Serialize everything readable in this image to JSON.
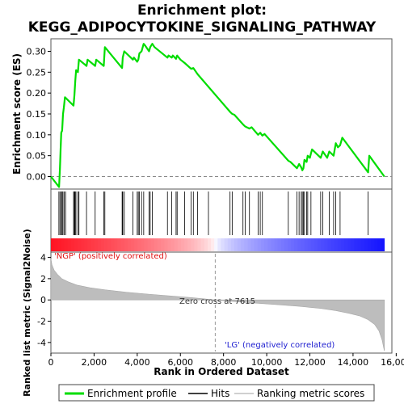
{
  "chart_data": {
    "type": "line",
    "title_line1": "Enrichment plot:",
    "title_line2": "KEGG_ADIPOCYTOKINE_SIGNALING_PATHWAY",
    "es_panel": {
      "ylabel": "Enrichment score (ES)",
      "ylim": [
        -0.03,
        0.33
      ],
      "yticks": [
        "0.00",
        "0.05",
        "0.10",
        "0.15",
        "0.20",
        "0.25",
        "0.30"
      ],
      "ytick_values": [
        0.0,
        0.05,
        0.1,
        0.15,
        0.2,
        0.25,
        0.3
      ],
      "series": [
        {
          "name": "Enrichment profile",
          "color": "#00dd00",
          "x": [
            0,
            380,
            420,
            450,
            480,
            520,
            560,
            600,
            650,
            1050,
            1090,
            1130,
            1170,
            1250,
            1300,
            1650,
            1700,
            2050,
            2100,
            2450,
            2500,
            3300,
            3330,
            3400,
            3800,
            3850,
            4000,
            4050,
            4100,
            4200,
            4300,
            4350,
            4550,
            4600,
            4700,
            4800,
            5400,
            5450,
            5600,
            5650,
            5800,
            5850,
            6000,
            6200,
            6500,
            6600,
            6800,
            8300,
            8400,
            8500,
            8900,
            9000,
            9200,
            9300,
            9600,
            9700,
            9800,
            9900,
            11000,
            11100,
            11400,
            11500,
            11600,
            11650,
            11700,
            11750,
            11850,
            11900,
            12000,
            12050,
            12100,
            12500,
            12600,
            12800,
            12900,
            13100,
            13200,
            13300,
            13400,
            13500,
            14700,
            14750,
            15450
          ],
          "y": [
            0.0,
            -0.025,
            0.02,
            0.065,
            0.105,
            0.11,
            0.15,
            0.165,
            0.19,
            0.17,
            0.195,
            0.23,
            0.255,
            0.25,
            0.28,
            0.265,
            0.28,
            0.265,
            0.28,
            0.265,
            0.31,
            0.26,
            0.285,
            0.3,
            0.28,
            0.285,
            0.275,
            0.28,
            0.295,
            0.3,
            0.318,
            0.315,
            0.3,
            0.31,
            0.318,
            0.31,
            0.285,
            0.29,
            0.285,
            0.29,
            0.282,
            0.29,
            0.28,
            0.272,
            0.258,
            0.26,
            0.245,
            0.155,
            0.15,
            0.148,
            0.125,
            0.12,
            0.115,
            0.118,
            0.1,
            0.105,
            0.098,
            0.102,
            0.038,
            0.035,
            0.02,
            0.03,
            0.022,
            0.015,
            0.02,
            0.04,
            0.035,
            0.05,
            0.045,
            0.055,
            0.065,
            0.045,
            0.06,
            0.045,
            0.06,
            0.05,
            0.08,
            0.07,
            0.075,
            0.093,
            0.01,
            0.05,
            0.0
          ]
        }
      ]
    },
    "hits_panel": {
      "hit_positions": [
        370,
        420,
        480,
        520,
        560,
        620,
        680,
        1050,
        1090,
        1120,
        1160,
        1250,
        1300,
        1650,
        2050,
        2450,
        2500,
        3300,
        3330,
        3400,
        3800,
        4000,
        4050,
        4100,
        4200,
        4300,
        4550,
        4600,
        4700,
        5400,
        5600,
        5800,
        5850,
        6200,
        6500,
        6600,
        6800,
        7300,
        8300,
        8400,
        8900,
        9000,
        9200,
        9600,
        9700,
        9800,
        11000,
        11400,
        11500,
        11600,
        11650,
        11700,
        11750,
        11850,
        11900,
        12050,
        12500,
        12600,
        12900,
        13100,
        13200,
        13400,
        14700
      ]
    },
    "rank_panel": {
      "ylabel": "Ranked list metric (Signal2Noise)",
      "xlabel": "Rank in Ordered Dataset",
      "ylim": [
        -5,
        4.5
      ],
      "yticks": [
        "4",
        "2",
        "0",
        "-2",
        "-4"
      ],
      "ytick_values": [
        4,
        2,
        0,
        -2,
        -4
      ],
      "x": [
        0,
        50,
        150,
        300,
        500,
        800,
        1200,
        1800,
        2500,
        3500,
        4500,
        5500,
        6500,
        7615,
        8500,
        9500,
        10500,
        11500,
        12500,
        13200,
        13800,
        14300,
        14700,
        15000,
        15200,
        15350,
        15450
      ],
      "y": [
        3.9,
        3.3,
        2.8,
        2.4,
        2.0,
        1.7,
        1.4,
        1.15,
        0.95,
        0.72,
        0.55,
        0.38,
        0.22,
        0.0,
        -0.15,
        -0.3,
        -0.45,
        -0.6,
        -0.8,
        -1.0,
        -1.25,
        -1.5,
        -1.85,
        -2.3,
        -2.9,
        -3.8,
        -4.8
      ],
      "zero_cross_label": "Zero cross at 7615",
      "zero_cross": 7615,
      "pos_label": "'NGP' (positively correlated)",
      "neg_label": "'LG' (negatively correlated)"
    },
    "xlim": [
      0,
      15800
    ],
    "xticks": [
      "0",
      "2,000",
      "4,000",
      "6,000",
      "8,000",
      "10,000",
      "12,000",
      "14,000",
      "16,000"
    ],
    "xtick_values": [
      0,
      2000,
      4000,
      6000,
      8000,
      10000,
      12000,
      14000,
      16000
    ],
    "n_genes": 15450,
    "legend": [
      {
        "label": "Enrichment profile",
        "color": "#00dd00"
      },
      {
        "label": "Hits",
        "color": "#000000"
      },
      {
        "label": "Ranking metric scores",
        "color": "#c0c0c0"
      }
    ],
    "grid": false
  }
}
